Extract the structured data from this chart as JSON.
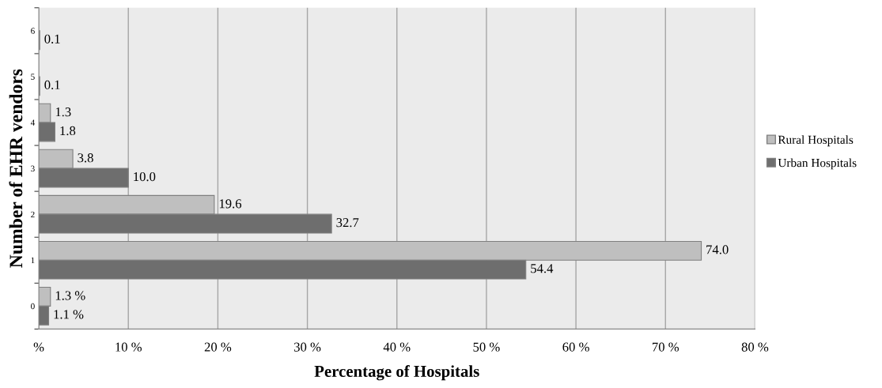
{
  "chart_data": {
    "type": "bar",
    "orientation": "horizontal",
    "xlabel": "Percentage of Hospitals",
    "ylabel": "Number of EHR vendors",
    "categories": [
      "6",
      "5",
      "4",
      "3",
      "2",
      "1",
      "0"
    ],
    "series": [
      {
        "name": "Rural Hospitals",
        "color": "#bfbfbf",
        "values": [
          null,
          null,
          1.3,
          3.8,
          19.6,
          74.0,
          1.3
        ],
        "value_labels": [
          null,
          null,
          "1.3",
          "3.8",
          "19.6",
          "74.0",
          "1.3 %"
        ]
      },
      {
        "name": "Urban Hospitals",
        "color": "#6e6e6e",
        "values": [
          0.1,
          0.1,
          1.8,
          10.0,
          32.7,
          54.4,
          1.1
        ],
        "value_labels": [
          "0.1",
          "0.1",
          "1.8",
          "10.0",
          "32.7",
          "54.4",
          "1.1 %"
        ]
      }
    ],
    "xlim": [
      0,
      80
    ],
    "xticks": [
      {
        "value": 0,
        "label": "%"
      },
      {
        "value": 10,
        "label": "10 %"
      },
      {
        "value": 20,
        "label": "20 %"
      },
      {
        "value": 30,
        "label": "30 %"
      },
      {
        "value": 40,
        "label": "40 %"
      },
      {
        "value": 50,
        "label": "50 %"
      },
      {
        "value": 60,
        "label": "60 %"
      },
      {
        "value": 70,
        "label": "70 %"
      },
      {
        "value": 80,
        "label": "80 %"
      }
    ],
    "grid": "x",
    "legend": "right"
  }
}
